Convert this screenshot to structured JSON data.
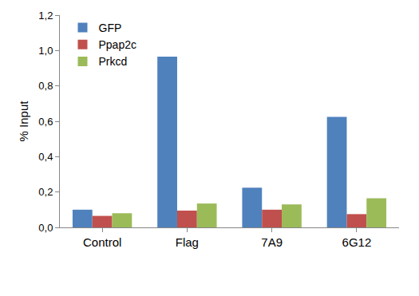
{
  "chart_data": {
    "type": "bar",
    "categories": [
      "Control",
      "Flag",
      "7A9",
      "6G12"
    ],
    "series": [
      {
        "name": "GFP",
        "color": "#4f81bd",
        "values": [
          0.1,
          0.965,
          0.225,
          0.625
        ]
      },
      {
        "name": "Ppap2c",
        "color": "#c0504d",
        "values": [
          0.065,
          0.095,
          0.1,
          0.075
        ]
      },
      {
        "name": "Prkcd",
        "color": "#9bbb59",
        "values": [
          0.08,
          0.135,
          0.13,
          0.165
        ]
      }
    ],
    "y_label": "% Input",
    "ylim": [
      0,
      1.2
    ],
    "yticks": [
      {
        "value": 0,
        "label": "0,0"
      },
      {
        "value": 0.2,
        "label": "0,2"
      },
      {
        "value": 0.4,
        "label": "0,4"
      },
      {
        "value": 0.6,
        "label": "0,6"
      },
      {
        "value": 0.8,
        "label": "0,8"
      },
      {
        "value": 1.0,
        "label": "1,0"
      },
      {
        "value": 1.2,
        "label": "1,2"
      }
    ],
    "grid": false,
    "legend": "top-left"
  }
}
